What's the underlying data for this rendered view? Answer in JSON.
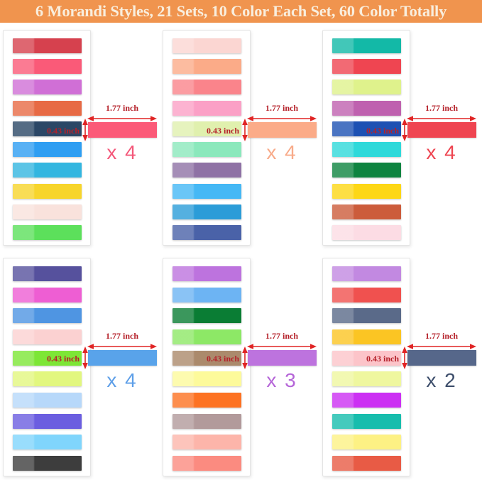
{
  "title": "6 Morandi Styles, 21 Sets, 10 Color Each Set, 60 Color Totally",
  "banner": {
    "bg": "#f0944e",
    "text_color": "#f9eedd"
  },
  "dimension_text_color": "#b5212a",
  "arrow_color": "#e02424",
  "sets": [
    {
      "name": "set-1",
      "colors": [
        "#d6414e",
        "#fa5a78",
        "#d06fd6",
        "#e76a45",
        "#2b4766",
        "#2e9ef2",
        "#33b6e0",
        "#f7d52c",
        "#f9e2dc",
        "#5ce05b"
      ],
      "sample_color": "#fb5a78",
      "width_label": "1.77 inch",
      "height_label": "0.43 inch",
      "multiplier": "x 4",
      "multiplier_color": "#f4587a"
    },
    {
      "name": "set-2",
      "colors": [
        "#fbd6d2",
        "#fbab88",
        "#fa848b",
        "#fba0c6",
        "#e0f0ae",
        "#8be8bc",
        "#8f72a5",
        "#45b8f5",
        "#2b9cd8",
        "#4a62a8"
      ],
      "sample_color": "#fbab88",
      "width_label": "1.77 inch",
      "height_label": "0.43 inch",
      "multiplier": "x 4",
      "multiplier_color": "#f8ab8a"
    },
    {
      "name": "set-3",
      "colors": [
        "#13b9a7",
        "#ef4551",
        "#dff28c",
        "#bf61af",
        "#1d51b3",
        "#2fd9da",
        "#0e8440",
        "#fdd716",
        "#cc5c3b",
        "#fcdce4"
      ],
      "sample_color": "#ef4551",
      "width_label": "1.77 inch",
      "height_label": "0.43 inch",
      "multiplier": "x 4",
      "multiplier_color": "#ee4551"
    },
    {
      "name": "set-4",
      "colors": [
        "#56519d",
        "#ee5ed3",
        "#4f95e2",
        "#fbd1d1",
        "#7de636",
        "#e2f77f",
        "#b7d8fa",
        "#6b5ee0",
        "#80d5fc",
        "#3d3d3d"
      ],
      "sample_color": "#59a3ea",
      "width_label": "1.77 inch",
      "height_label": "0.43 inch",
      "multiplier": "x 4",
      "multiplier_color": "#5e9fe8"
    },
    {
      "name": "set-5",
      "colors": [
        "#bd73de",
        "#6db4f3",
        "#0a7d34",
        "#8de866",
        "#ab8a6c",
        "#fdfa9b",
        "#fd7222",
        "#b29a9b",
        "#fdb5aa",
        "#fb8b80"
      ],
      "sample_color": "#bd73de",
      "width_label": "1.77 inch",
      "height_label": "0.43 inch",
      "multiplier": "x 3",
      "multiplier_color": "#b565d8"
    },
    {
      "name": "set-6",
      "colors": [
        "#c289e1",
        "#f0514f",
        "#5a6a89",
        "#fbc523",
        "#fcc4c9",
        "#eff79f",
        "#cc30f3",
        "#17bdad",
        "#fdf184",
        "#e85b45"
      ],
      "sample_color": "#56678a",
      "width_label": "1.77 inch",
      "height_label": "0.43 inch",
      "multiplier": "x 2",
      "multiplier_color": "#3d4e6b"
    }
  ]
}
